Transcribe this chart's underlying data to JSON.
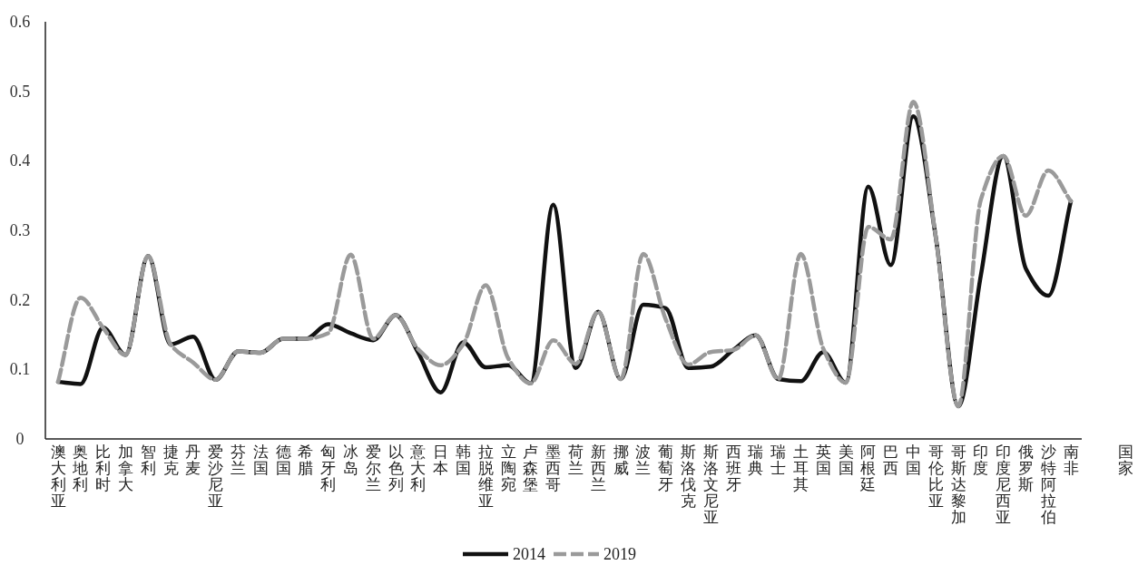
{
  "chart_data": {
    "type": "line",
    "xlabel": "国家",
    "ylim": [
      0,
      0.6
    ],
    "yticks": [
      0,
      0.1,
      0.2,
      0.3,
      0.4,
      0.5,
      0.6
    ],
    "grid": false,
    "legend": "bottom",
    "categories": [
      "澳大利亚",
      "奥地利",
      "比利时",
      "加拿大",
      "智利",
      "捷克",
      "丹麦",
      "爱沙尼亚",
      "芬兰",
      "法国",
      "德国",
      "希腊",
      "匈牙利",
      "冰岛",
      "爱尔兰",
      "以色列",
      "意大利",
      "日本",
      "韩国",
      "拉脱维亚",
      "立陶宛",
      "卢森堡",
      "墨西哥",
      "荷兰",
      "新西兰",
      "挪威",
      "波兰",
      "葡萄牙",
      "斯洛伐克",
      "斯洛文尼亚",
      "西班牙",
      "瑞典",
      "瑞士",
      "土耳其",
      "英国",
      "美国",
      "阿根廷",
      "巴西",
      "中国",
      "哥伦比亚",
      "哥斯达黎加",
      "印度",
      "印度尼西亚",
      "俄罗斯",
      "沙特阿拉伯",
      "南非"
    ],
    "series": [
      {
        "name": "2014",
        "color": "#111111",
        "line_style": "solid",
        "values": [
          0.082,
          0.079,
          0.16,
          0.121,
          0.263,
          0.136,
          0.147,
          0.085,
          0.126,
          0.124,
          0.144,
          0.144,
          0.165,
          0.152,
          0.142,
          0.178,
          0.124,
          0.067,
          0.139,
          0.103,
          0.106,
          0.08,
          0.337,
          0.102,
          0.183,
          0.086,
          0.193,
          0.188,
          0.102,
          0.104,
          0.128,
          0.149,
          0.086,
          0.083,
          0.125,
          0.081,
          0.363,
          0.25,
          0.464,
          0.29,
          0.047,
          0.235,
          0.407,
          0.245,
          0.206,
          0.342
        ]
      },
      {
        "name": "2019",
        "color": "#9a9a9a",
        "line_style": "dashed",
        "values": [
          0.082,
          0.203,
          0.16,
          0.121,
          0.263,
          0.136,
          0.11,
          0.085,
          0.126,
          0.124,
          0.144,
          0.144,
          0.152,
          0.265,
          0.144,
          0.178,
          0.129,
          0.106,
          0.136,
          0.221,
          0.116,
          0.08,
          0.142,
          0.108,
          0.183,
          0.086,
          0.266,
          0.172,
          0.107,
          0.125,
          0.128,
          0.149,
          0.086,
          0.266,
          0.13,
          0.081,
          0.305,
          0.287,
          0.485,
          0.29,
          0.047,
          0.344,
          0.407,
          0.321,
          0.386,
          0.342
        ]
      }
    ]
  }
}
